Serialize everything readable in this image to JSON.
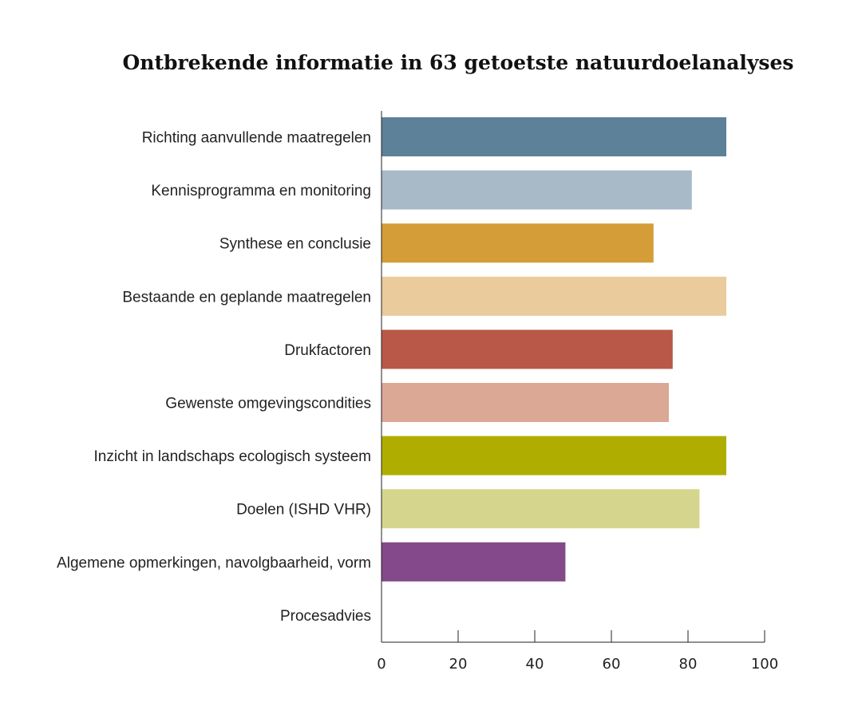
{
  "chart_data": {
    "type": "bar",
    "orientation": "horizontal",
    "title": "Ontbrekende informatie in 63 getoetste natuurdoelanalyses",
    "xlabel": "",
    "ylabel": "",
    "xlim": [
      0,
      100
    ],
    "xticks": [
      "0",
      "20",
      "40",
      "60",
      "80",
      "100"
    ],
    "grid": false,
    "categories": [
      "Richting aanvullende maatregelen",
      "Kennisprogramma en monitoring",
      "Synthese en conclusie",
      "Bestaande en geplande maatregelen",
      "Drukfactoren",
      "Gewenste omgevingscondities",
      "Inzicht in landschaps ecologisch systeem",
      "Doelen (ISHD VHR)",
      "Algemene opmerkingen, navolgbaarheid, vorm",
      "Procesadvies"
    ],
    "values": [
      90,
      81,
      71,
      90,
      76,
      75,
      90,
      83,
      48,
      0
    ],
    "colors": [
      "#5c8199",
      "#a8b9c8",
      "#d49d37",
      "#eacb9b",
      "#b95848",
      "#dba896",
      "#afae00",
      "#d5d58e",
      "#83498a",
      "#ffffff"
    ]
  }
}
